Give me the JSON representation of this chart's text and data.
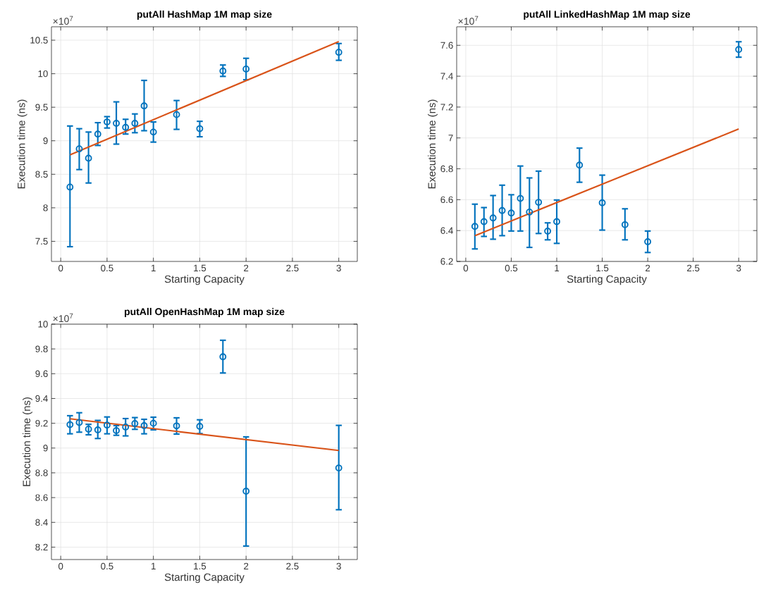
{
  "chart_data": [
    {
      "type": "scatter",
      "title": "putAll HashMap 1M map size",
      "xlabel": "Starting Capacity",
      "ylabel": "Execution time (ns)",
      "annotations": [
        "×10$^{7}$"
      ],
      "xlim": [
        -0.1,
        3.2
      ],
      "ylim": [
        7.2,
        10.7
      ],
      "xticks": [
        0,
        0.5,
        1,
        1.5,
        2,
        2.5,
        3
      ],
      "yticks": [
        7.5,
        8,
        8.5,
        9,
        9.5,
        10,
        10.5
      ],
      "grid": true,
      "series": [
        {
          "marker": "circle",
          "color": "#0072bd",
          "x": [
            0.1,
            0.2,
            0.3,
            0.4,
            0.5,
            0.6,
            0.7,
            0.8,
            0.9,
            1.0,
            1.25,
            1.5,
            1.75,
            2.0,
            3.0
          ],
          "values": [
            8.31,
            8.88,
            8.74,
            9.1,
            9.28,
            9.26,
            9.2,
            9.26,
            9.52,
            9.13,
            9.39,
            9.18,
            10.04,
            10.07,
            10.32
          ],
          "errors": [
            [
              7.42,
              9.22
            ],
            [
              8.57,
              9.18
            ],
            [
              8.37,
              9.13
            ],
            [
              8.93,
              9.27
            ],
            [
              9.19,
              9.36
            ],
            [
              8.95,
              9.58
            ],
            [
              9.1,
              9.32
            ],
            [
              9.12,
              9.4
            ],
            [
              9.15,
              9.9
            ],
            [
              8.98,
              9.28
            ],
            [
              9.17,
              9.6
            ],
            [
              9.06,
              9.29
            ],
            [
              9.96,
              10.13
            ],
            [
              9.91,
              10.23
            ],
            [
              10.2,
              10.45
            ]
          ]
        },
        {
          "type": "line",
          "marker": "none",
          "color": "#d95319",
          "x": [
            0.1,
            3.0
          ],
          "values": [
            8.79,
            10.48
          ]
        }
      ]
    },
    {
      "type": "scatter",
      "title": "putAll LinkedHashMap 1M map size",
      "xlabel": "Starting Capacity",
      "ylabel": "Execution time (ns)",
      "annotations": [
        "×10$^{7}$"
      ],
      "xlim": [
        -0.1,
        3.2
      ],
      "ylim": [
        6.2,
        7.72
      ],
      "xticks": [
        0,
        0.5,
        1,
        1.5,
        2,
        2.5,
        3
      ],
      "yticks": [
        6.2,
        6.4,
        6.6,
        6.8,
        7,
        7.2,
        7.4,
        7.6
      ],
      "grid": true,
      "series": [
        {
          "marker": "circle",
          "color": "#0072bd",
          "x": [
            0.1,
            0.2,
            0.3,
            0.4,
            0.5,
            0.6,
            0.7,
            0.8,
            0.9,
            1.0,
            1.25,
            1.5,
            1.75,
            2.0,
            3.0
          ],
          "values": [
            6.427,
            6.458,
            6.482,
            6.53,
            6.514,
            6.608,
            6.52,
            6.583,
            6.396,
            6.458,
            6.824,
            6.58,
            6.438,
            6.328,
            7.573
          ],
          "errors": [
            [
              6.281,
              6.571
            ],
            [
              6.362,
              6.549
            ],
            [
              6.344,
              6.627
            ],
            [
              6.367,
              6.694
            ],
            [
              6.397,
              6.632
            ],
            [
              6.397,
              6.818
            ],
            [
              6.291,
              6.741
            ],
            [
              6.381,
              6.785
            ],
            [
              6.34,
              6.45
            ],
            [
              6.317,
              6.598
            ],
            [
              6.713,
              6.934
            ],
            [
              6.403,
              6.759
            ],
            [
              6.34,
              6.541
            ],
            [
              6.258,
              6.397
            ],
            [
              7.523,
              7.623
            ]
          ]
        },
        {
          "type": "line",
          "marker": "none",
          "color": "#d95319",
          "x": [
            0.1,
            3.0
          ],
          "values": [
            6.367,
            7.058
          ]
        }
      ]
    },
    {
      "type": "scatter",
      "title": "putAll OpenHashMap 1M map size",
      "xlabel": "Starting Capacity",
      "ylabel": "Execution time (ns)",
      "annotations": [
        "×10$^{7}$"
      ],
      "xlim": [
        -0.1,
        3.2
      ],
      "ylim": [
        8.1,
        10
      ],
      "xticks": [
        0,
        0.5,
        1,
        1.5,
        2,
        2.5,
        3
      ],
      "yticks": [
        8.2,
        8.4,
        8.6,
        8.8,
        9,
        9.2,
        9.4,
        9.6,
        9.8,
        10
      ],
      "grid": true,
      "series": [
        {
          "marker": "circle",
          "color": "#0072bd",
          "x": [
            0.1,
            0.2,
            0.3,
            0.4,
            0.5,
            0.6,
            0.7,
            0.8,
            0.9,
            1.0,
            1.25,
            1.5,
            1.75,
            2.0,
            3.0
          ],
          "values": [
            9.189,
            9.206,
            9.153,
            9.147,
            9.185,
            9.141,
            9.17,
            9.198,
            9.181,
            9.2,
            9.179,
            9.175,
            9.737,
            8.652,
            8.839
          ],
          "errors": [
            [
              9.115,
              9.261
            ],
            [
              9.128,
              9.285
            ],
            [
              9.107,
              9.191
            ],
            [
              9.077,
              9.223
            ],
            [
              9.115,
              9.251
            ],
            [
              9.103,
              9.181
            ],
            [
              9.098,
              9.238
            ],
            [
              9.151,
              9.246
            ],
            [
              9.115,
              9.232
            ],
            [
              9.147,
              9.249
            ],
            [
              9.113,
              9.244
            ],
            [
              9.117,
              9.228
            ],
            [
              9.606,
              9.87
            ],
            [
              8.209,
              9.09
            ],
            [
              8.502,
              9.183
            ]
          ]
        },
        {
          "type": "line",
          "marker": "none",
          "color": "#d95319",
          "x": [
            0.1,
            3.0
          ],
          "values": [
            9.236,
            8.98
          ]
        }
      ]
    }
  ]
}
